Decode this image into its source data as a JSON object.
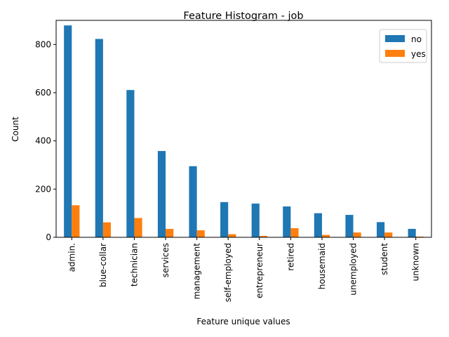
{
  "chart_data": {
    "type": "bar",
    "title": "Feature Histogram - job",
    "xlabel": "Feature unique values",
    "ylabel": "Count",
    "ylim": [
      0,
      900
    ],
    "yticks": [
      0,
      200,
      400,
      600,
      800
    ],
    "categories": [
      "admin.",
      "blue-collar",
      "technician",
      "services",
      "management",
      "self-employed",
      "entrepreneur",
      "retired",
      "housemaid",
      "unemployed",
      "student",
      "unknown"
    ],
    "series": [
      {
        "name": "no",
        "color": "#1f77b4",
        "values": [
          879,
          823,
          611,
          358,
          295,
          146,
          140,
          128,
          100,
          93,
          63,
          35
        ]
      },
      {
        "name": "yes",
        "color": "#ff7f0e",
        "values": [
          133,
          62,
          80,
          35,
          29,
          13,
          6,
          38,
          10,
          20,
          20,
          3
        ]
      }
    ],
    "legend_position": "top-right",
    "grid": false
  }
}
